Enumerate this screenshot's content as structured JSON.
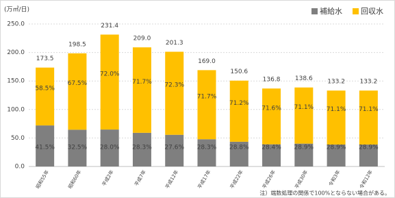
{
  "chart_data": {
    "type": "stacked-bar",
    "y_label": "(万㎥/日)",
    "categories": [
      "昭和55年",
      "昭和60年",
      "平成2年",
      "平成7年",
      "平成12年",
      "平成17年",
      "平成22年",
      "平成26年",
      "平成30年",
      "令和3年",
      "令和12年"
    ],
    "series": [
      {
        "name": "補給水",
        "color": "#7f7f7f",
        "values": [
          72.0,
          64.5,
          64.8,
          59.1,
          55.6,
          47.8,
          43.4,
          38.9,
          40.1,
          38.5,
          38.5
        ],
        "labels": [
          "41.5%",
          "32.5%",
          "28.0%",
          "28.3%",
          "27.6%",
          "28.3%",
          "28.8%",
          "28.4%",
          "28.9%",
          "28.9%",
          "28.9%"
        ]
      },
      {
        "name": "回収水",
        "color": "#ffc000",
        "values": [
          101.5,
          134.0,
          166.6,
          149.9,
          145.7,
          121.2,
          107.2,
          97.9,
          98.5,
          94.7,
          94.7
        ],
        "labels": [
          "58.5%",
          "67.5%",
          "72.0%",
          "71.7%",
          "72.3%",
          "71.7%",
          "71.2%",
          "71.6%",
          "71.1%",
          "71.1%",
          "71.1%"
        ]
      }
    ],
    "totals": [
      173.5,
      198.5,
      231.4,
      209.0,
      201.3,
      169.0,
      150.6,
      136.8,
      138.6,
      133.2,
      133.2
    ],
    "total_labels": [
      "173.5",
      "198.5",
      "231.4",
      "209.0",
      "201.3",
      "169.0",
      "150.6",
      "136.8",
      "138.6",
      "133.2",
      "133.2"
    ],
    "ylim": [
      0,
      250
    ],
    "yticks": [
      {
        "value": 0,
        "label": "0.0"
      },
      {
        "value": 50,
        "label": "50.0"
      },
      {
        "value": 100,
        "label": "100.0"
      },
      {
        "value": 150,
        "label": "150.0"
      },
      {
        "value": 200,
        "label": "200.0"
      },
      {
        "value": 250,
        "label": "250.0"
      }
    ],
    "grid": true,
    "legend": "top-right",
    "note": "注）端数処理の関係で100%とならない場合がある。"
  }
}
